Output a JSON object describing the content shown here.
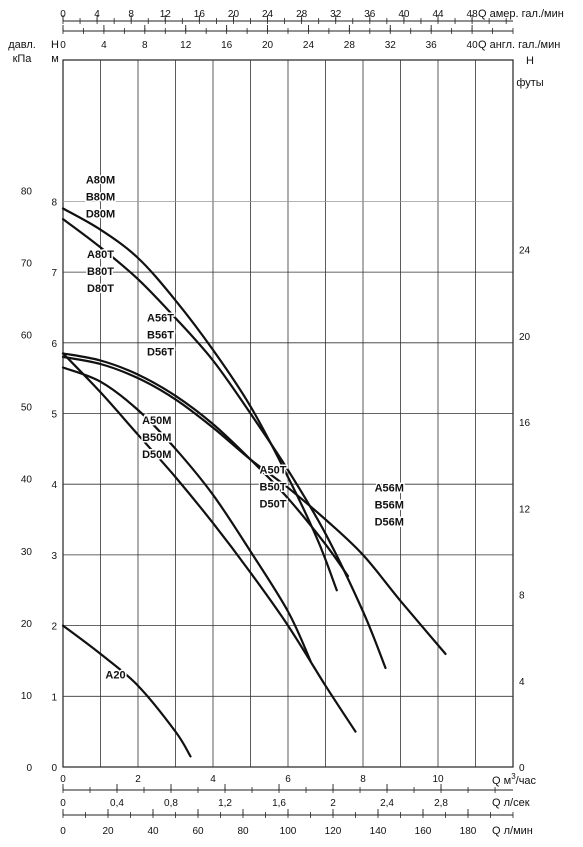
{
  "chart_data": {
    "type": "line",
    "y_left": {
      "label_head": "H",
      "label_unit": "м",
      "range": [
        0,
        10
      ],
      "ticks": [
        0,
        1,
        2,
        3,
        4,
        5,
        6,
        7,
        8
      ]
    },
    "y_kpa": {
      "label_line1": "давл.",
      "label_line2": "кПа",
      "range": [
        0,
        98.1
      ],
      "ticks": [
        0,
        10,
        20,
        30,
        40,
        50,
        60,
        70,
        80
      ]
    },
    "y_right": {
      "label_head": "H",
      "label_unit": "футы",
      "range": [
        0,
        32.8
      ],
      "ticks": [
        0,
        4,
        8,
        12,
        16,
        20,
        24
      ]
    },
    "x_main": {
      "label": "Q",
      "unit_base": "м",
      "unit_sup": "3",
      "unit_tail": "/час",
      "range": [
        0,
        12
      ],
      "ticks": [
        0,
        2,
        4,
        6,
        8,
        10
      ]
    },
    "x_ls": {
      "label": "Q",
      "unit": "л/сек",
      "range": [
        0,
        3.333
      ],
      "ticks": [
        "0",
        "0,4",
        "0,8",
        "1,2",
        "1,6",
        "2",
        "2,4",
        "2,8"
      ],
      "tick_values": [
        0,
        0.4,
        0.8,
        1.2,
        1.6,
        2,
        2.4,
        2.8
      ]
    },
    "x_lmin": {
      "label": "Q",
      "unit": "л/мин",
      "range": [
        0,
        200
      ],
      "ticks": [
        0,
        20,
        40,
        60,
        80,
        100,
        120,
        140,
        160,
        180
      ]
    },
    "x_usgal": {
      "label": "Q",
      "unit": "амер. гал./мин",
      "range": [
        0,
        52.8
      ],
      "ticks": [
        0,
        4,
        8,
        12,
        16,
        20,
        24,
        28,
        32,
        36,
        40,
        44,
        48
      ]
    },
    "x_ukgal": {
      "label": "Q",
      "unit": "англ. гал./мин",
      "range": [
        0,
        44
      ],
      "ticks": [
        0,
        4,
        8,
        12,
        16,
        20,
        24,
        28,
        32,
        36,
        40
      ]
    },
    "series": [
      {
        "name": "A80M B80M D80M",
        "x": [
          0,
          1,
          2,
          3,
          4,
          5,
          6,
          6.8,
          7.3
        ],
        "y": [
          7.9,
          7.6,
          7.2,
          6.6,
          5.9,
          5.1,
          4.1,
          3.2,
          2.5
        ]
      },
      {
        "name": "A80T B80T D80T",
        "x": [
          0,
          1,
          2,
          3,
          4,
          5,
          6,
          7,
          8,
          8.6
        ],
        "y": [
          7.75,
          7.35,
          6.9,
          6.35,
          5.75,
          5.0,
          4.2,
          3.3,
          2.2,
          1.4
        ]
      },
      {
        "name": "A56T B56T D56T",
        "x": [
          0,
          1,
          2,
          3,
          4,
          5,
          6,
          7,
          7.6
        ],
        "y": [
          5.85,
          5.75,
          5.55,
          5.25,
          4.85,
          4.35,
          3.8,
          3.15,
          2.7
        ]
      },
      {
        "name": "A56M B56M D56M",
        "x": [
          0,
          1,
          2,
          3,
          4,
          5,
          6,
          7,
          8,
          9,
          10.2
        ],
        "y": [
          5.8,
          5.7,
          5.5,
          5.2,
          4.8,
          4.35,
          3.95,
          3.5,
          3.0,
          2.35,
          1.6
        ]
      },
      {
        "name": "A50T B50T D50T",
        "x": [
          0,
          1,
          2,
          3,
          4,
          5,
          6,
          6.6
        ],
        "y": [
          5.65,
          5.45,
          5.05,
          4.5,
          3.85,
          3.05,
          2.2,
          1.5
        ]
      },
      {
        "name": "A50M B50M D50M",
        "x": [
          0,
          1,
          2,
          3,
          4,
          5,
          6,
          7,
          7.8
        ],
        "y": [
          5.85,
          5.3,
          4.7,
          4.1,
          3.45,
          2.75,
          2.0,
          1.15,
          0.5
        ]
      },
      {
        "name": "A20",
        "x": [
          0,
          1,
          2,
          3,
          3.4
        ],
        "y": [
          2.0,
          1.6,
          1.15,
          0.5,
          0.15
        ]
      }
    ],
    "labels": [
      {
        "lines": [
          "A80M",
          "B80M",
          "D80M"
        ],
        "x": 1.0,
        "y": 8.25
      },
      {
        "lines": [
          "A80T",
          "B80T",
          "D80T"
        ],
        "x": 1.0,
        "y": 7.2
      },
      {
        "lines": [
          "A56T",
          "B56T",
          "D56T"
        ],
        "x": 2.6,
        "y": 6.3
      },
      {
        "lines": [
          "A50M",
          "B50M",
          "D50M"
        ],
        "x": 2.5,
        "y": 4.85
      },
      {
        "lines": [
          "A50T",
          "B50T",
          "D50T"
        ],
        "x": 5.6,
        "y": 4.15
      },
      {
        "lines": [
          "A56M",
          "B56M",
          "D56M"
        ],
        "x": 8.7,
        "y": 3.9
      },
      {
        "lines": [
          "A20"
        ],
        "x": 1.4,
        "y": 1.25
      }
    ],
    "grid": true
  }
}
